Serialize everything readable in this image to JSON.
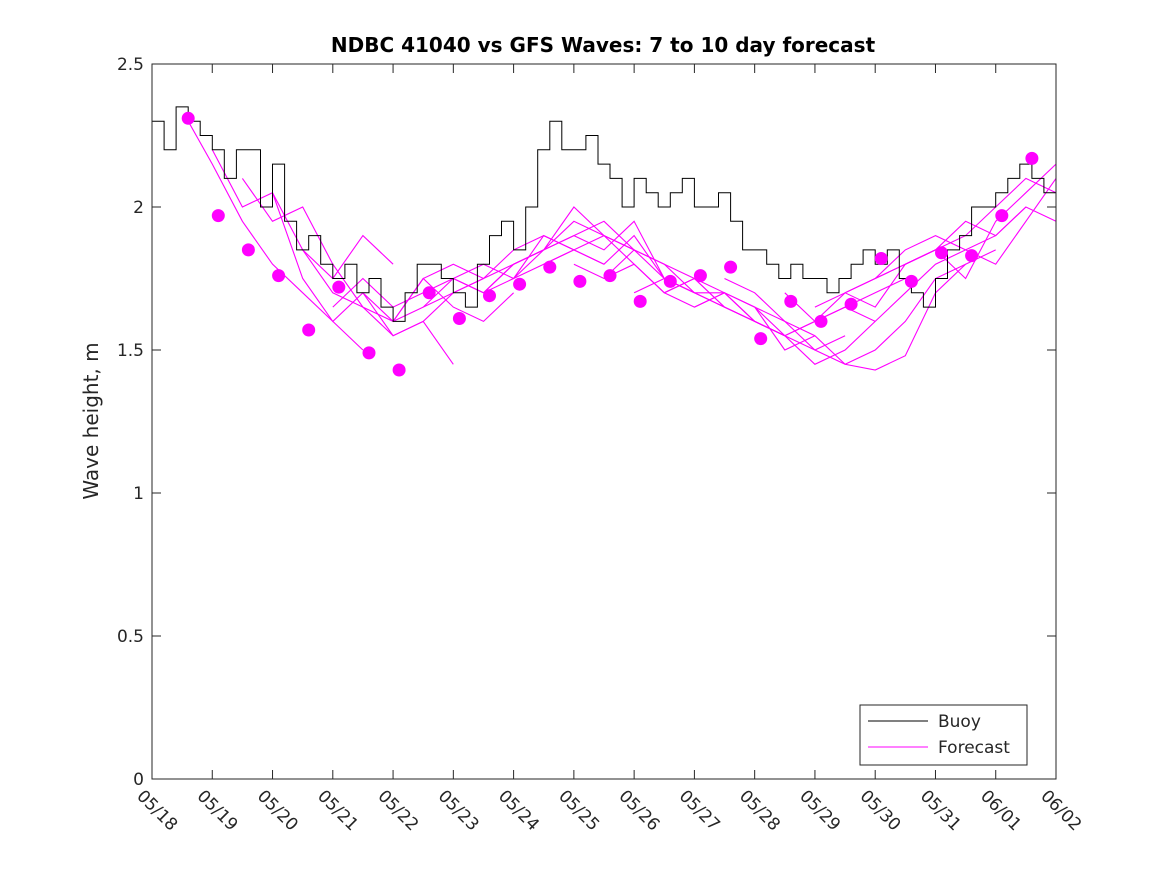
{
  "chart_data": {
    "type": "line",
    "title": "NDBC 41040 vs GFS Waves: 7 to 10 day forecast",
    "xlabel": "",
    "ylabel": "Wave height, m",
    "x_tick_labels": [
      "05/18",
      "05/19",
      "05/20",
      "05/21",
      "05/22",
      "05/23",
      "05/24",
      "05/25",
      "05/26",
      "05/27",
      "05/28",
      "05/29",
      "05/30",
      "05/31",
      "06/01",
      "06/02"
    ],
    "xlim_days": [
      0,
      15
    ],
    "ylim": [
      0,
      2.5
    ],
    "y_ticks": [
      0,
      0.5,
      1,
      1.5,
      2,
      2.5
    ],
    "grid": false,
    "legend_position": "bottom-right",
    "colors": {
      "buoy": "#000000",
      "forecast": "#ff00ff"
    },
    "legend": [
      {
        "key": "buoy",
        "label": "Buoy"
      },
      {
        "key": "forecast",
        "label": "Forecast"
      }
    ],
    "buoy": {
      "days": [
        0,
        0.2,
        0.4,
        0.6,
        0.8,
        1,
        1.2,
        1.4,
        1.6,
        1.8,
        2,
        2.2,
        2.4,
        2.6,
        2.8,
        3,
        3.2,
        3.4,
        3.6,
        3.8,
        4,
        4.2,
        4.4,
        4.6,
        4.8,
        5,
        5.2,
        5.4,
        5.6,
        5.8,
        6,
        6.2,
        6.4,
        6.6,
        6.8,
        7,
        7.2,
        7.4,
        7.6,
        7.8,
        8,
        8.2,
        8.4,
        8.6,
        8.8,
        9,
        9.2,
        9.4,
        9.6,
        9.8,
        10,
        10.2,
        10.4,
        10.6,
        10.8,
        11,
        11.2,
        11.4,
        11.6,
        11.8,
        12,
        12.2,
        12.4,
        12.6,
        12.8,
        13,
        13.2,
        13.4,
        13.6,
        13.8,
        14,
        14.2,
        14.4,
        14.6,
        14.8,
        15
      ],
      "values": [
        2.3,
        2.2,
        2.35,
        2.3,
        2.25,
        2.2,
        2.1,
        2.2,
        2.2,
        2.0,
        2.15,
        1.95,
        1.85,
        1.9,
        1.8,
        1.75,
        1.8,
        1.7,
        1.75,
        1.65,
        1.6,
        1.7,
        1.8,
        1.8,
        1.75,
        1.7,
        1.65,
        1.8,
        1.9,
        1.95,
        1.85,
        2.0,
        2.2,
        2.3,
        2.2,
        2.2,
        2.25,
        2.15,
        2.1,
        2.0,
        2.1,
        2.05,
        2.0,
        2.05,
        2.1,
        2.0,
        2.0,
        2.05,
        1.95,
        1.85,
        1.85,
        1.8,
        1.75,
        1.8,
        1.75,
        1.75,
        1.7,
        1.75,
        1.8,
        1.85,
        1.8,
        1.85,
        1.75,
        1.7,
        1.65,
        1.75,
        1.85,
        1.9,
        2.0,
        2.0,
        2.05,
        2.1,
        2.15,
        2.1,
        2.05,
        2.0
      ]
    },
    "forecast_runs": [
      {
        "days": [
          0.6,
          1.0,
          1.5,
          2.0,
          2.5,
          3.0,
          3.5
        ],
        "values": [
          2.3,
          2.15,
          1.95,
          1.8,
          1.7,
          1.6,
          1.5
        ]
      },
      {
        "days": [
          1.0,
          1.5,
          2.0,
          2.5,
          3.0,
          3.5,
          4.0
        ],
        "values": [
          2.2,
          2.0,
          2.05,
          1.85,
          1.75,
          1.9,
          1.8
        ]
      },
      {
        "days": [
          1.5,
          2.0,
          2.5,
          3.0,
          3.5,
          4.0,
          4.5,
          5.0
        ],
        "values": [
          2.1,
          1.95,
          2.0,
          1.8,
          1.65,
          1.55,
          1.6,
          1.45
        ]
      },
      {
        "days": [
          2.0,
          2.5,
          3.0,
          3.5,
          4.0,
          4.5,
          5.0,
          5.5
        ],
        "values": [
          2.05,
          1.75,
          1.6,
          1.7,
          1.55,
          1.6,
          1.7,
          1.75
        ]
      },
      {
        "days": [
          2.5,
          3.0,
          3.5,
          4.0,
          4.5,
          5.0,
          5.5,
          6.0
        ],
        "values": [
          1.85,
          1.7,
          1.65,
          1.6,
          1.75,
          1.65,
          1.6,
          1.7
        ]
      },
      {
        "days": [
          3.0,
          3.5,
          4.0,
          4.5,
          5.0,
          5.5,
          6.0,
          6.5,
          7.0
        ],
        "values": [
          1.65,
          1.75,
          1.65,
          1.7,
          1.75,
          1.7,
          1.75,
          1.8,
          1.85
        ]
      },
      {
        "days": [
          3.5,
          4.0,
          4.5,
          5.0,
          5.5,
          6.0,
          6.5,
          7.0,
          7.5
        ],
        "values": [
          1.7,
          1.6,
          1.75,
          1.8,
          1.75,
          1.85,
          1.9,
          1.85,
          1.8
        ]
      },
      {
        "days": [
          4.0,
          4.5,
          5.0,
          5.5,
          6.0,
          6.5,
          7.0,
          7.5,
          8.0
        ],
        "values": [
          1.6,
          1.65,
          1.7,
          1.75,
          1.8,
          1.85,
          1.95,
          1.9,
          1.85
        ]
      },
      {
        "days": [
          4.5,
          5.0,
          5.5,
          6.0,
          6.5,
          7.0,
          7.5,
          8.0,
          8.5
        ],
        "values": [
          1.65,
          1.75,
          1.7,
          1.8,
          1.85,
          1.9,
          1.85,
          1.95,
          1.75
        ]
      },
      {
        "days": [
          5.0,
          5.5,
          6.0,
          6.5,
          7.0,
          7.5,
          8.0,
          8.5,
          9.0
        ],
        "values": [
          1.75,
          1.8,
          1.75,
          1.9,
          1.85,
          1.8,
          1.9,
          1.75,
          1.7
        ]
      },
      {
        "days": [
          5.5,
          6.0,
          6.5,
          7.0,
          7.5,
          8.0,
          8.5,
          9.0,
          9.5
        ],
        "values": [
          1.7,
          1.8,
          1.85,
          2.0,
          1.9,
          1.8,
          1.7,
          1.75,
          1.65
        ]
      },
      {
        "days": [
          6.0,
          6.5,
          7.0,
          7.5,
          8.0,
          8.5,
          9.0,
          9.5,
          10.0
        ],
        "values": [
          1.75,
          1.85,
          1.9,
          1.95,
          1.85,
          1.75,
          1.7,
          1.65,
          1.6
        ]
      },
      {
        "days": [
          6.5,
          7.0,
          7.5,
          8.0,
          8.5,
          9.0,
          9.5,
          10.0,
          10.5
        ],
        "values": [
          1.8,
          1.85,
          1.9,
          1.85,
          1.8,
          1.75,
          1.7,
          1.6,
          1.55
        ]
      },
      {
        "days": [
          7.0,
          7.5,
          8.0,
          8.5,
          9.0,
          9.5,
          10.0,
          10.5,
          11.0
        ],
        "values": [
          1.8,
          1.75,
          1.85,
          1.8,
          1.7,
          1.7,
          1.65,
          1.5,
          1.55
        ]
      },
      {
        "days": [
          7.5,
          8.0,
          8.5,
          9.0,
          9.5,
          10.0,
          10.5,
          11.0,
          11.5
        ],
        "values": [
          1.75,
          1.8,
          1.7,
          1.75,
          1.65,
          1.6,
          1.55,
          1.5,
          1.55
        ]
      },
      {
        "days": [
          8.0,
          8.5,
          9.0,
          9.5,
          10.0,
          10.5,
          11.0,
          11.5,
          12.0
        ],
        "values": [
          1.7,
          1.75,
          1.7,
          1.65,
          1.6,
          1.55,
          1.45,
          1.5,
          1.6
        ]
      },
      {
        "days": [
          8.5,
          9.0,
          9.5,
          10.0,
          10.5,
          11.0,
          11.5,
          12.0,
          12.5
        ],
        "values": [
          1.7,
          1.65,
          1.7,
          1.6,
          1.55,
          1.6,
          1.65,
          1.7,
          1.75
        ]
      },
      {
        "days": [
          9.0,
          9.5,
          10.0,
          10.5,
          11.0,
          11.5,
          12.0,
          12.5,
          13.0
        ],
        "values": [
          1.65,
          1.7,
          1.65,
          1.55,
          1.6,
          1.7,
          1.75,
          1.8,
          1.85
        ]
      },
      {
        "days": [
          9.5,
          10.0,
          10.5,
          11.0,
          11.5,
          12.0,
          12.5,
          13.0,
          13.5
        ],
        "values": [
          1.75,
          1.7,
          1.6,
          1.5,
          1.45,
          1.5,
          1.6,
          1.75,
          1.8
        ]
      },
      {
        "days": [
          10.0,
          10.5,
          11.0,
          11.5,
          12.0,
          12.5,
          13.0,
          13.5,
          14.0
        ],
        "values": [
          1.65,
          1.6,
          1.55,
          1.45,
          1.43,
          1.48,
          1.7,
          1.8,
          1.85
        ]
      },
      {
        "days": [
          10.5,
          11.0,
          11.5,
          12.0,
          12.5,
          13.0,
          13.5,
          14.0,
          14.5
        ],
        "values": [
          1.7,
          1.6,
          1.65,
          1.6,
          1.7,
          1.8,
          1.85,
          1.9,
          2.0
        ]
      },
      {
        "days": [
          11.0,
          11.5,
          12.0,
          12.5,
          13.0,
          13.5,
          14.0,
          14.5,
          15.0
        ],
        "values": [
          1.65,
          1.7,
          1.65,
          1.8,
          1.85,
          1.9,
          2.0,
          2.1,
          2.05
        ]
      },
      {
        "days": [
          11.5,
          12.0,
          12.5,
          13.0,
          13.5,
          14.0,
          14.5,
          15.0
        ],
        "values": [
          1.7,
          1.75,
          1.8,
          1.85,
          1.75,
          1.95,
          2.05,
          2.15
        ]
      },
      {
        "days": [
          12.0,
          12.5,
          13.0,
          13.5,
          14.0,
          14.5,
          15.0
        ],
        "values": [
          1.75,
          1.85,
          1.9,
          1.85,
          1.8,
          1.95,
          2.1
        ]
      },
      {
        "days": [
          12.5,
          13.0,
          13.5,
          14.0,
          14.5,
          15.0
        ],
        "values": [
          1.8,
          1.85,
          1.95,
          1.9,
          2.0,
          1.95
        ]
      }
    ],
    "forecast_points": {
      "days": [
        0.6,
        1.1,
        1.6,
        2.1,
        2.6,
        3.1,
        3.6,
        4.1,
        4.6,
        5.1,
        5.6,
        6.1,
        6.6,
        7.1,
        7.6,
        8.1,
        8.6,
        9.1,
        9.6,
        10.1,
        10.6,
        11.1,
        11.6,
        12.1,
        12.6,
        13.1,
        13.6,
        14.1,
        14.6
      ],
      "values": [
        2.31,
        1.97,
        1.85,
        1.76,
        1.57,
        1.72,
        1.49,
        1.43,
        1.7,
        1.61,
        1.69,
        1.73,
        1.79,
        1.74,
        1.76,
        1.67,
        1.74,
        1.76,
        1.79,
        1.54,
        1.67,
        1.6,
        1.66,
        1.82,
        1.74,
        1.84,
        1.83,
        1.97,
        2.17
      ]
    }
  }
}
